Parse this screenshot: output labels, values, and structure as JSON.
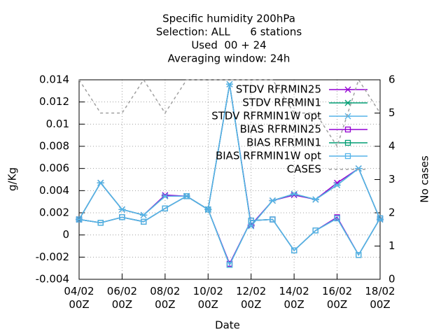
{
  "chart_data": {
    "type": "line",
    "title_lines": [
      "Specific humidity 200hPa",
      "Selection: ALL      6 stations",
      "Used  00 + 24",
      "Averaging window: 24h"
    ],
    "x_label": "Date",
    "y_label": "g/Kg",
    "y2_label": "No cases",
    "categories": [
      "04/02\n00Z",
      null,
      "06/02\n00Z",
      null,
      "08/02\n00Z",
      null,
      "10/02\n00Z",
      null,
      "12/02\n00Z",
      null,
      "14/02\n00Z",
      null,
      "16/02\n00Z",
      null,
      "18/02\n00Z"
    ],
    "ylim": [
      -0.004,
      0.014
    ],
    "yticks": [
      -0.004,
      -0.002,
      0,
      0.002,
      0.004,
      0.006,
      0.008,
      0.01,
      0.012,
      0.014
    ],
    "y2lim": [
      0,
      6
    ],
    "y2ticks": [
      0,
      1,
      2,
      3,
      4,
      5,
      6
    ],
    "grid": true,
    "legend": "top-right",
    "series": [
      {
        "name": "STDV RFRMIN25",
        "color": "#9400d3",
        "marker": "star",
        "values": [
          0.0014,
          0.0047,
          0.0023,
          0.0018,
          0.0036,
          0.0035,
          0.0023,
          0.0136,
          0.0009,
          0.0031,
          0.0036,
          0.0032,
          0.0047,
          0.006,
          0.0014
        ]
      },
      {
        "name": "STDV RFRMIN1",
        "color": "#009e73",
        "marker": "star",
        "values": [
          0.0014,
          0.0047,
          0.0023,
          0.0018,
          0.0035,
          0.0035,
          0.0023,
          0.0136,
          0.0008,
          0.0031,
          0.0037,
          0.0032,
          0.0045,
          0.006,
          0.0014
        ]
      },
      {
        "name": "STDV RFRMIN1W opt",
        "color": "#56b4e9",
        "marker": "star",
        "values": [
          0.0014,
          0.0047,
          0.0023,
          0.0018,
          0.0035,
          0.0035,
          0.0023,
          0.0136,
          0.0008,
          0.0031,
          0.0037,
          0.0032,
          0.0045,
          0.006,
          0.0014
        ]
      },
      {
        "name": "BIAS RFRMIN25",
        "color": "#9400d3",
        "marker": "square",
        "values": [
          0.0014,
          0.0011,
          0.0016,
          0.0012,
          0.0024,
          0.0035,
          0.0023,
          -0.0026,
          0.0013,
          0.0014,
          -0.0014,
          0.0004,
          0.0016,
          -0.0018,
          0.0015
        ]
      },
      {
        "name": "BIAS RFRMIN1",
        "color": "#009e73",
        "marker": "square",
        "values": [
          0.0014,
          0.0011,
          0.0016,
          0.0012,
          0.0024,
          0.0035,
          0.0023,
          -0.0027,
          0.0013,
          0.0014,
          -0.0014,
          0.0004,
          0.0015,
          -0.0018,
          0.0015
        ]
      },
      {
        "name": "BIAS RFRMIN1W opt",
        "color": "#56b4e9",
        "marker": "square",
        "values": [
          0.0014,
          0.0011,
          0.0016,
          0.0012,
          0.0024,
          0.0035,
          0.0023,
          -0.0027,
          0.0013,
          0.0014,
          -0.0014,
          0.0004,
          0.0015,
          -0.0018,
          0.0015
        ]
      },
      {
        "name": "CASES",
        "color": "#a0a0a0",
        "marker": "none",
        "dash": true,
        "axis": "y2",
        "values": [
          6,
          5,
          5,
          6,
          5,
          6,
          6,
          6,
          6,
          6,
          5,
          5,
          4,
          6,
          5
        ]
      }
    ]
  }
}
